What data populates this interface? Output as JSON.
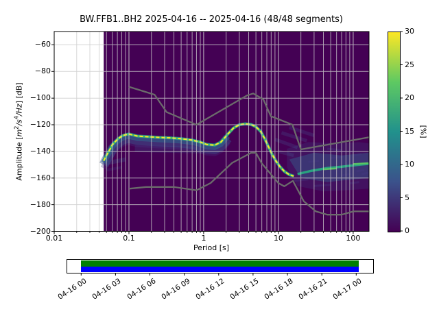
{
  "title": "BW.FFB1..BH2   2025-04-16 -- 2025-04-16  (48/48 segments)",
  "axes": {
    "xlabel": "Period [s]",
    "ylabel": {
      "pre": "Amplitude [",
      "m": "m",
      "msup": "2",
      "sl1": "/",
      "s": "s",
      "ssup": "4",
      "sl2": "/",
      "hz": "Hz",
      "post": "] [dB]"
    },
    "x_ticks": [
      {
        "value": 0.01,
        "label": "0.01"
      },
      {
        "value": 0.1,
        "label": "0.1"
      },
      {
        "value": 1,
        "label": "1"
      },
      {
        "value": 10,
        "label": "10"
      },
      {
        "value": 100,
        "label": "100"
      }
    ],
    "y_ticks": [
      {
        "value": -60,
        "label": "−60"
      },
      {
        "value": -80,
        "label": "−80"
      },
      {
        "value": -100,
        "label": "−100"
      },
      {
        "value": -120,
        "label": "−120"
      },
      {
        "value": -140,
        "label": "−140"
      },
      {
        "value": -160,
        "label": "−160"
      },
      {
        "value": -180,
        "label": "−180"
      },
      {
        "value": -200,
        "label": "−200"
      }
    ]
  },
  "colorbar": {
    "label": "[%]",
    "ticks": [
      {
        "value": 0,
        "label": "0"
      },
      {
        "value": 5,
        "label": "5"
      },
      {
        "value": 10,
        "label": "10"
      },
      {
        "value": 15,
        "label": "15"
      },
      {
        "value": 20,
        "label": "20"
      },
      {
        "value": 25,
        "label": "25"
      },
      {
        "value": 30,
        "label": "30"
      }
    ]
  },
  "timeline": {
    "tick_labels": [
      "04-16 00",
      "04-16 03",
      "04-16 06",
      "04-16 09",
      "04-16 12",
      "04-16 15",
      "04-16 18",
      "04-16 21",
      "04-17 00"
    ]
  },
  "colors": {
    "background": "#ffffff",
    "histogram_zero": "#440154",
    "histogram_max": "#fde725",
    "grid": "#cccccc",
    "noise_model": "#6b6b6b",
    "coverage_top": "#008000",
    "coverage_bottom": "#0000ff",
    "viridis_stops": [
      "#440154",
      "#3b528b",
      "#21918c",
      "#5ec962",
      "#fde725"
    ]
  },
  "chart_data": {
    "type": "heatmap",
    "title": "BW.FFB1..BH2   2025-04-16 -- 2025-04-16  (48/48 segments)",
    "station": "BW.FFB1..BH2",
    "date_range": "2025-04-16 -- 2025-04-16",
    "segments_used": 48,
    "segments_total": 48,
    "xlabel": "Period [s]",
    "ylabel": "Amplitude [m^2/s^4/Hz] [dB]",
    "clabel": "[%]",
    "xscale": "log",
    "xlim": [
      0.01,
      163
    ],
    "ylim": [
      -200,
      -50
    ],
    "clim": [
      0,
      30
    ],
    "grid": true,
    "data_period_start": 0.046,
    "mode_curve": {
      "periods": [
        0.046,
        0.05,
        0.055,
        0.06,
        0.07,
        0.08,
        0.09,
        0.1,
        0.13,
        0.18,
        0.25,
        0.35,
        0.5,
        0.7,
        0.9,
        1.1,
        1.4,
        1.7,
        2.1,
        2.5,
        3.0,
        3.6,
        4.3,
        5.0,
        5.8,
        6.5,
        7.3,
        8.2,
        9.2,
        10.5,
        12,
        14,
        16
      ],
      "db": [
        -147,
        -143,
        -139,
        -135,
        -131,
        -128.5,
        -127.5,
        -127,
        -128.5,
        -129,
        -129.5,
        -129.8,
        -130.5,
        -131.5,
        -133,
        -134.8,
        -135.3,
        -133,
        -127,
        -122.5,
        -120,
        -119.3,
        -119.8,
        -121.5,
        -125,
        -130,
        -136,
        -142,
        -147,
        -151.5,
        -155,
        -157.5,
        -158.5
      ]
    },
    "noise_models": {
      "nhnm": {
        "periods": [
          0.1,
          0.22,
          0.32,
          0.8,
          3.8,
          4.6,
          6.3,
          7.9,
          15.4,
          20.0,
          163
        ],
        "db": [
          -91.5,
          -97.4,
          -110.5,
          -120.0,
          -98.0,
          -96.5,
          -101.0,
          -113.5,
          -120.0,
          -138.5,
          -129.4
        ]
      },
      "nlnm": {
        "periods": [
          0.1,
          0.17,
          0.4,
          0.8,
          1.24,
          2.4,
          4.3,
          5.0,
          6.0,
          10.0,
          12.0,
          15.6,
          21.9,
          31.6,
          45.0,
          70.0,
          101,
          163
        ],
        "db": [
          -168.0,
          -166.7,
          -166.7,
          -169.2,
          -163.7,
          -148.6,
          -141.1,
          -141.1,
          -149.0,
          -163.8,
          -166.2,
          -162.1,
          -177.5,
          -185.0,
          -187.5,
          -187.5,
          -185.0,
          -185.0
        ]
      }
    },
    "long_period_cloud": {
      "outer": [
        [
          13,
          -138
        ],
        [
          25,
          -133
        ],
        [
          60,
          -134
        ],
        [
          120,
          -133
        ],
        [
          163,
          -134
        ],
        [
          163,
          -168
        ],
        [
          90,
          -169
        ],
        [
          40,
          -170
        ],
        [
          18,
          -166
        ],
        [
          13,
          -152
        ]
      ],
      "inner": [
        [
          14,
          -146
        ],
        [
          30,
          -141
        ],
        [
          70,
          -143
        ],
        [
          163,
          -141
        ],
        [
          163,
          -160
        ],
        [
          100,
          -161
        ],
        [
          45,
          -163
        ],
        [
          20,
          -160
        ]
      ],
      "streak": [
        [
          18,
          -157
        ],
        [
          28,
          -154.5
        ],
        [
          45,
          -152.5
        ],
        [
          70,
          -151.5
        ],
        [
          100,
          -150.5
        ],
        [
          130,
          -149.8
        ],
        [
          163,
          -149.3
        ]
      ],
      "bright_dashes": [
        [
          [
            100,
            -149.5
          ],
          [
            160,
            -148.8
          ]
        ],
        [
          [
            40,
            -153.5
          ],
          [
            60,
            -152.8
          ]
        ]
      ],
      "wisps": [
        [
          [
            9,
            -131
          ],
          [
            18,
            -137
          ]
        ],
        [
          [
            11,
            -126
          ],
          [
            24,
            -132
          ]
        ],
        [
          [
            14,
            -122
          ],
          [
            30,
            -128
          ]
        ],
        [
          [
            10,
            -140
          ],
          [
            16,
            -143
          ]
        ]
      ],
      "mottle": [
        [
          [
            16,
            -162
          ],
          [
            25,
            -161
          ]
        ],
        [
          [
            30,
            -166
          ],
          [
            50,
            -165
          ]
        ],
        [
          [
            70,
            -158
          ],
          [
            95,
            -157
          ]
        ],
        [
          [
            50,
            -145
          ],
          [
            75,
            -144
          ]
        ],
        [
          [
            110,
            -155
          ],
          [
            140,
            -154
          ]
        ],
        [
          [
            90,
            -164
          ],
          [
            120,
            -163
          ]
        ],
        [
          [
            25,
            -148
          ],
          [
            35,
            -147
          ]
        ],
        [
          [
            130,
            -157
          ],
          [
            160,
            -156
          ]
        ],
        [
          [
            45,
            -138
          ],
          [
            70,
            -139
          ]
        ],
        [
          [
            100,
            -143
          ],
          [
            130,
            -142
          ]
        ]
      ]
    },
    "short_period_scatter": [
      [
        [
          0.048,
          -149
        ],
        [
          0.09,
          -146
        ]
      ],
      [
        [
          0.05,
          -154
        ],
        [
          0.08,
          -152
        ]
      ],
      [
        [
          0.12,
          -138
        ],
        [
          1.0,
          -139
        ]
      ]
    ]
  }
}
